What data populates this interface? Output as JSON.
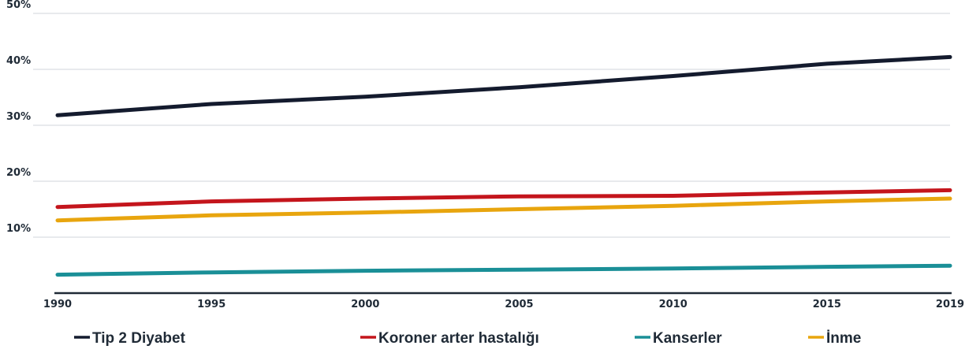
{
  "chart_data": {
    "type": "line",
    "x": [
      1990,
      1995,
      2000,
      2005,
      2010,
      2015,
      2019
    ],
    "x_tick_labels": [
      "1990",
      "1995",
      "2000",
      "2005",
      "2010",
      "2015",
      "2019"
    ],
    "y_tick_labels": [
      "10%",
      "20%",
      "30%",
      "40%",
      "50%"
    ],
    "ylim": [
      0,
      50
    ],
    "grid": true,
    "legend_position": "bottom",
    "series": [
      {
        "name": "Tip 2 Diyabet",
        "color": "#141b2e",
        "values": [
          31.8,
          33.8,
          35.1,
          36.8,
          38.8,
          41.0,
          42.2
        ]
      },
      {
        "name": "Koroner arter hastalığı",
        "color": "#c4151c",
        "values": [
          15.4,
          16.4,
          16.9,
          17.3,
          17.4,
          18.0,
          18.4
        ]
      },
      {
        "name": "Kanserler",
        "color": "#1a8f97",
        "values": [
          3.3,
          3.7,
          4.0,
          4.2,
          4.4,
          4.7,
          4.9
        ]
      },
      {
        "name": "İnme",
        "color": "#e8a50e",
        "values": [
          13.0,
          13.9,
          14.4,
          15.0,
          15.6,
          16.4,
          16.9
        ]
      }
    ]
  }
}
